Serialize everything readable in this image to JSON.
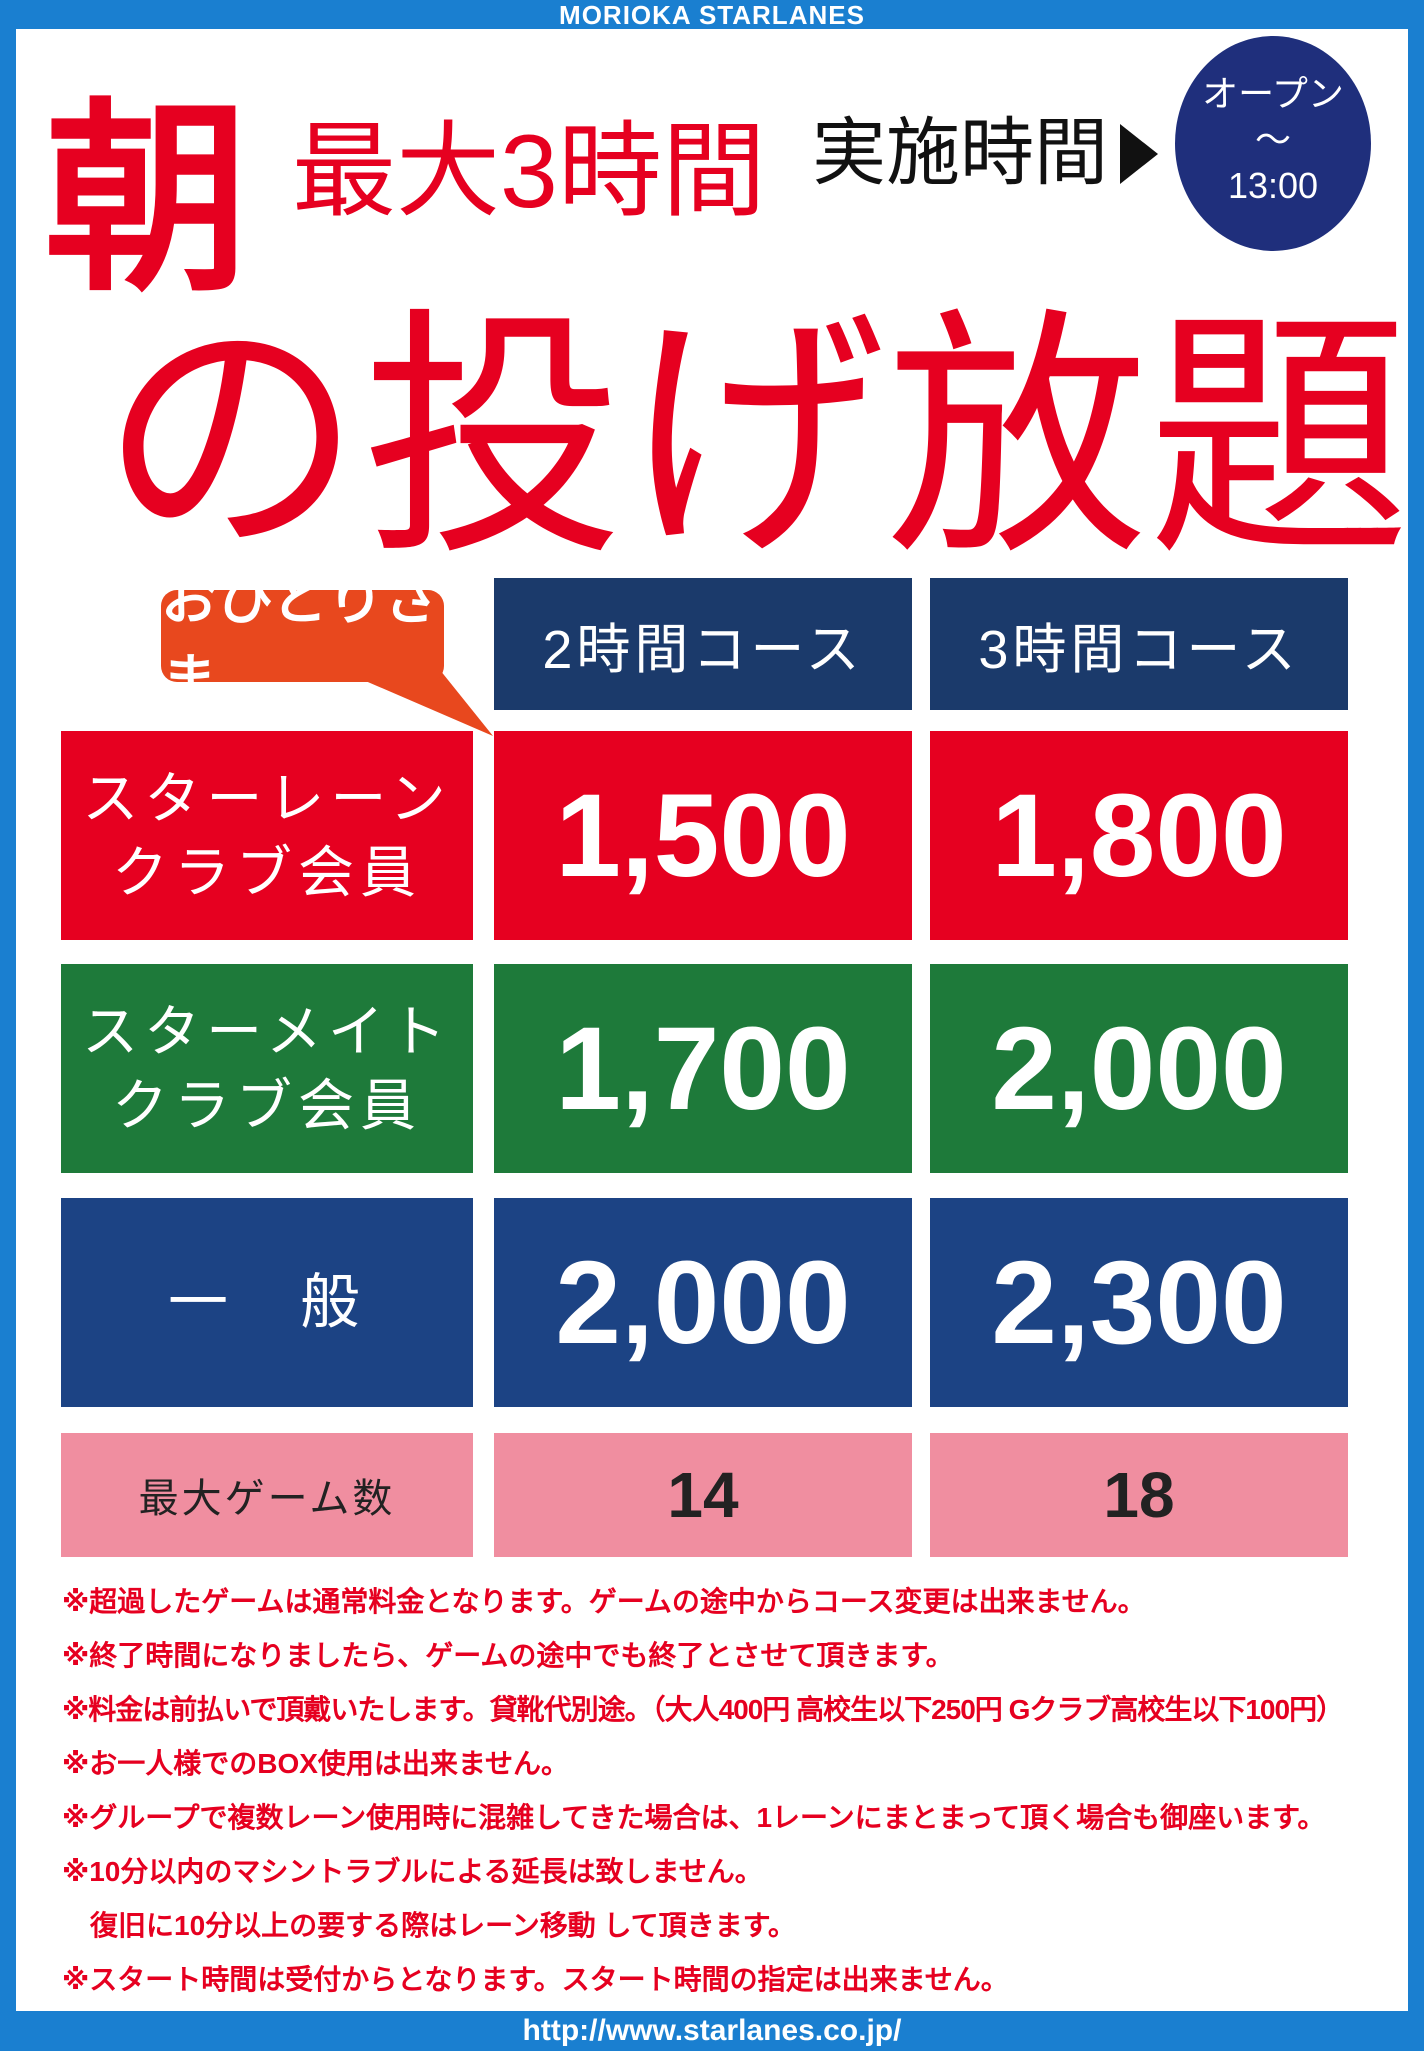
{
  "brand": "MORIOKA STARLANES",
  "headline": {
    "asa": "朝",
    "max_hours": "最大3時間",
    "main": "の投げ放題"
  },
  "hours": {
    "label": "実施時間",
    "open": "オープン",
    "tilde": "～",
    "close": "13:00"
  },
  "badge": "おひとりさま",
  "table": {
    "columns": [
      "2時間コース",
      "3時間コース"
    ],
    "rows": [
      {
        "label_line1": "スターレーン",
        "label_line2": "クラブ会員",
        "prices": [
          "1,500",
          "1,800"
        ],
        "color": "#e60020"
      },
      {
        "label_line1": "スターメイト",
        "label_line2": "クラブ会員",
        "prices": [
          "1,700",
          "2,000"
        ],
        "color": "#1e7a3a"
      },
      {
        "label_line1": "一　般",
        "label_line2": "",
        "prices": [
          "2,000",
          "2,300"
        ],
        "color": "#1c4384"
      }
    ],
    "max_games": {
      "label": "最大ゲーム数",
      "values": [
        "14",
        "18"
      ]
    }
  },
  "notes": [
    "※超過したゲームは通常料金となります。ゲームの途中からコース変更は出来ません。",
    "※終了時間になりましたら、ゲームの途中でも終了とさせて頂きます。",
    "※料金は前払いで頂戴いたします。貸靴代別途。（大人400円 高校生以下250円 Gクラブ高校生以下100円）",
    "※お一人様でのBOX使用は出来ません。",
    "※グループで複数レーン使用時に混雑してきた場合は、1レーンにまとまって頂く場合も御座います。",
    "※10分以内のマシントラブルによる延長は致しません。",
    "　復旧に10分以上の要する際はレーン移動 して頂きます。",
    "※スタート時間は受付からとなります。スタート時間の指定は出来ません。"
  ],
  "footer_url": "http://www.starlanes.co.jp/"
}
